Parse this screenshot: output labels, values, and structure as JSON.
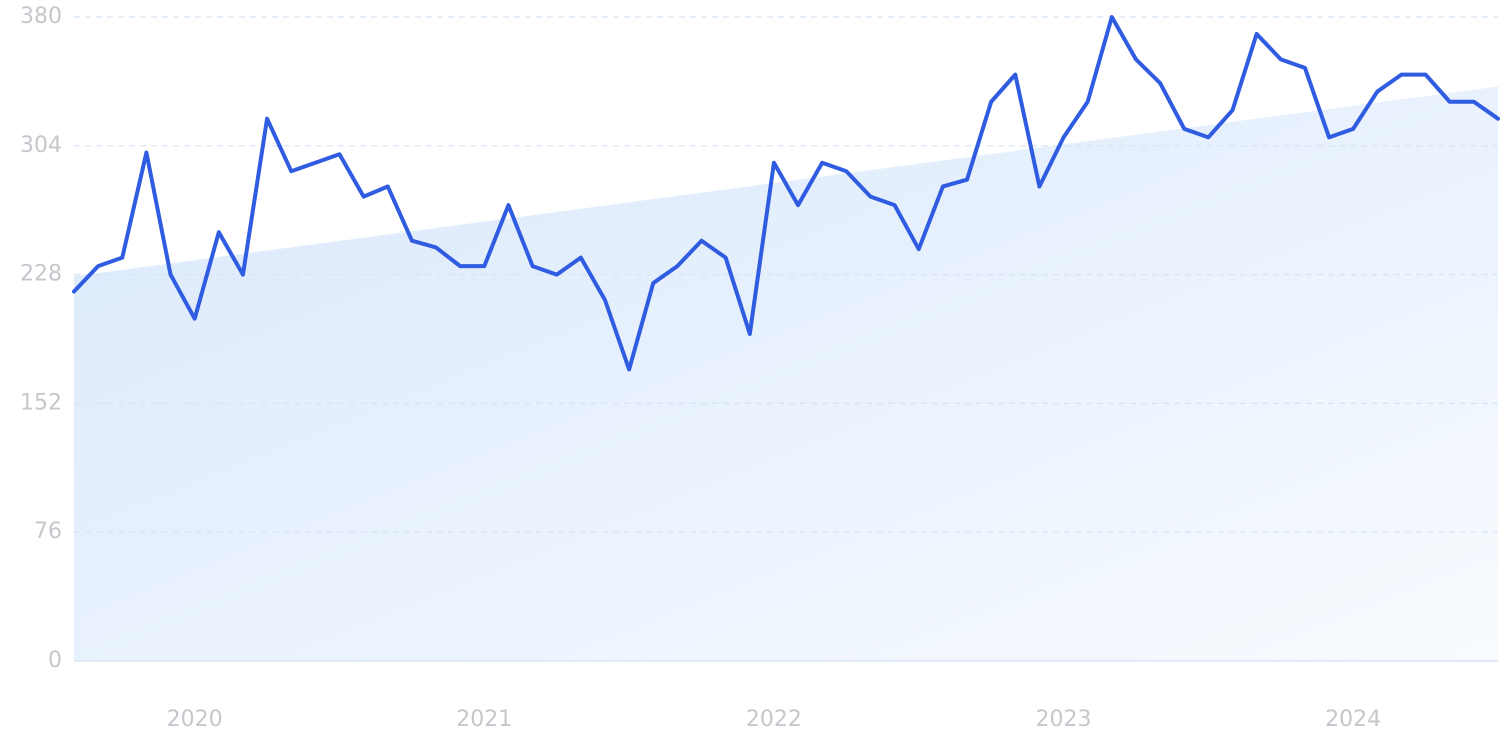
{
  "chart_data": {
    "type": "line",
    "categories": [
      null,
      null,
      null,
      null,
      null,
      "2020",
      null,
      null,
      null,
      null,
      null,
      null,
      null,
      null,
      null,
      null,
      null,
      "2021",
      null,
      null,
      null,
      null,
      null,
      null,
      null,
      null,
      null,
      null,
      null,
      "2022",
      null,
      null,
      null,
      null,
      null,
      null,
      null,
      null,
      null,
      null,
      null,
      "2023",
      null,
      null,
      null,
      null,
      null,
      null,
      null,
      null,
      null,
      null,
      null,
      "2024",
      null,
      null,
      null,
      null,
      null,
      null
    ],
    "series": [
      {
        "color": "#2f5ce0",
        "values": [
          218,
          233,
          238,
          300,
          228,
          202,
          253,
          228,
          320,
          289,
          294,
          299,
          274,
          280,
          248,
          244,
          233,
          233,
          269,
          233,
          228,
          238,
          213,
          172,
          223,
          233,
          248,
          238,
          193,
          294,
          269,
          294,
          289,
          274,
          269,
          243,
          280,
          284,
          330,
          346,
          280,
          309,
          330,
          380,
          355,
          341,
          314,
          309,
          325,
          370,
          355,
          350,
          309,
          314,
          336,
          346,
          346,
          330,
          330,
          320
        ]
      }
    ],
    "trend": [
      227,
      339
    ],
    "ylim": [
      0,
      380
    ],
    "yticks": [
      0,
      76,
      152,
      228,
      304,
      380
    ],
    "grid": true
  }
}
